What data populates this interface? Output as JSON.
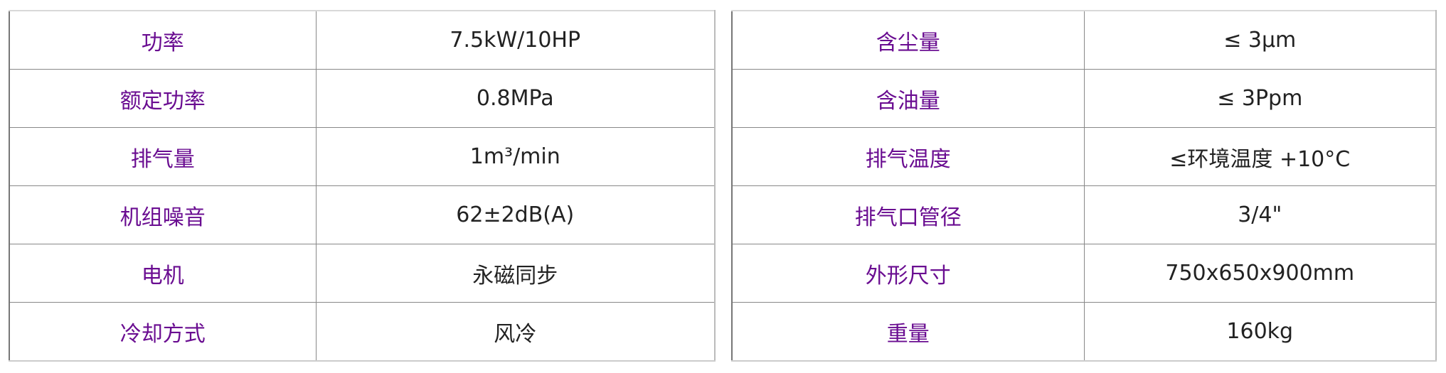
{
  "colors": {
    "label": "#6a0d91",
    "value": "#222222",
    "border": "#888888"
  },
  "left_table": [
    {
      "label": "功率",
      "value": "7.5kW/10HP"
    },
    {
      "label": "额定功率",
      "value": "0.8MPa"
    },
    {
      "label": "排气量",
      "value": "1m³/min"
    },
    {
      "label": "机组噪音",
      "value": "62±2dB(A)"
    },
    {
      "label": "电机",
      "value": "永磁同步"
    },
    {
      "label": "冷却方式",
      "value": "风冷"
    }
  ],
  "right_table": [
    {
      "label": "含尘量",
      "value": "≤ 3μm"
    },
    {
      "label": "含油量",
      "value": "≤ 3Ppm"
    },
    {
      "label": "排气温度",
      "value": "≤环境温度 +10°C"
    },
    {
      "label": "排气口管径",
      "value": "3/4\""
    },
    {
      "label": "外形尺寸",
      "value": "750x650x900mm"
    },
    {
      "label": "重量",
      "value": "160kg"
    }
  ]
}
